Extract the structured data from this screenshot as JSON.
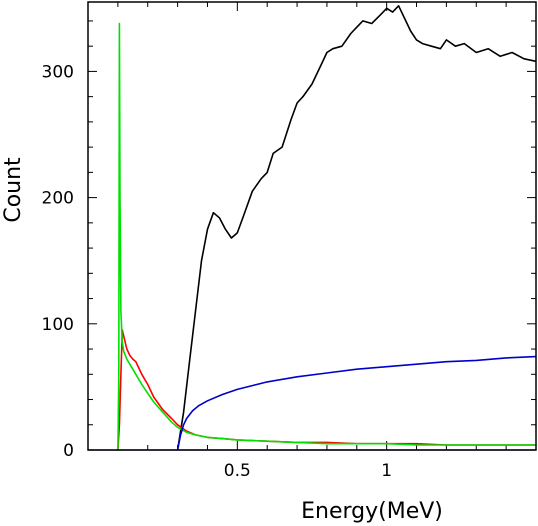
{
  "chart_data": {
    "type": "line",
    "xlabel": "Energy(MeV)",
    "ylabel": "Count",
    "xlim": [
      0.0,
      1.5
    ],
    "ylim": [
      0,
      355
    ],
    "grid": false,
    "x_ticks": [
      {
        "value": 0.5,
        "label": "0.5"
      },
      {
        "value": 1.0,
        "label": "1"
      }
    ],
    "y_ticks": [
      {
        "value": 0,
        "label": "0"
      },
      {
        "value": 100,
        "label": "100"
      },
      {
        "value": 200,
        "label": "200"
      },
      {
        "value": 300,
        "label": "300"
      }
    ],
    "series": [
      {
        "color": "#000000",
        "x": [
          0.3,
          0.32,
          0.34,
          0.36,
          0.38,
          0.4,
          0.42,
          0.44,
          0.46,
          0.48,
          0.5,
          0.52,
          0.55,
          0.58,
          0.6,
          0.62,
          0.65,
          0.68,
          0.7,
          0.72,
          0.75,
          0.78,
          0.8,
          0.82,
          0.85,
          0.88,
          0.9,
          0.92,
          0.95,
          0.98,
          1.0,
          1.02,
          1.04,
          1.06,
          1.08,
          1.1,
          1.12,
          1.15,
          1.18,
          1.2,
          1.23,
          1.26,
          1.3,
          1.34,
          1.38,
          1.42,
          1.46,
          1.5
        ],
        "values": [
          0,
          30,
          70,
          110,
          150,
          175,
          188,
          184,
          175,
          168,
          172,
          185,
          205,
          215,
          220,
          235,
          240,
          262,
          275,
          280,
          290,
          305,
          315,
          318,
          320,
          330,
          335,
          340,
          338,
          345,
          350,
          347,
          352,
          342,
          332,
          325,
          322,
          320,
          318,
          325,
          320,
          322,
          315,
          318,
          312,
          315,
          310,
          308
        ]
      },
      {
        "color": "#ff0000",
        "x": [
          0.1,
          0.105,
          0.11,
          0.115,
          0.12,
          0.13,
          0.14,
          0.15,
          0.16,
          0.17,
          0.18,
          0.2,
          0.22,
          0.25,
          0.28,
          0.3,
          0.33,
          0.36,
          0.4,
          0.45,
          0.5,
          0.6,
          0.7,
          0.8,
          0.9,
          1.0,
          1.1,
          1.2,
          1.3,
          1.4,
          1.5
        ],
        "values": [
          0,
          20,
          60,
          95,
          90,
          80,
          75,
          72,
          70,
          65,
          60,
          52,
          42,
          32,
          25,
          20,
          15,
          12,
          10,
          9,
          8,
          7,
          6,
          6,
          5,
          5,
          5,
          4,
          4,
          4,
          4
        ]
      },
      {
        "color": "#00e000",
        "x": [
          0.095,
          0.1,
          0.103,
          0.105,
          0.107,
          0.11,
          0.115,
          0.12,
          0.13,
          0.14,
          0.15,
          0.16,
          0.17,
          0.18,
          0.2,
          0.22,
          0.25,
          0.28,
          0.3,
          0.33,
          0.36,
          0.4,
          0.45,
          0.5,
          0.6,
          0.7,
          0.8,
          0.9,
          1.0,
          1.1,
          1.2,
          1.3,
          1.4,
          1.5
        ],
        "values": [
          0,
          0,
          60,
          338,
          200,
          110,
          85,
          78,
          72,
          68,
          64,
          60,
          56,
          52,
          45,
          38,
          30,
          22,
          18,
          14,
          12,
          10,
          9,
          8,
          7,
          6,
          5,
          5,
          5,
          4,
          4,
          4,
          4,
          4
        ]
      },
      {
        "color": "#0000cc",
        "x": [
          0.3,
          0.31,
          0.32,
          0.33,
          0.35,
          0.37,
          0.4,
          0.45,
          0.5,
          0.55,
          0.6,
          0.7,
          0.8,
          0.9,
          1.0,
          1.1,
          1.2,
          1.3,
          1.4,
          1.5
        ],
        "values": [
          0,
          12,
          20,
          25,
          31,
          35,
          39,
          44,
          48,
          51,
          54,
          58,
          61,
          64,
          66,
          68,
          70,
          71,
          73,
          74
        ]
      }
    ]
  }
}
